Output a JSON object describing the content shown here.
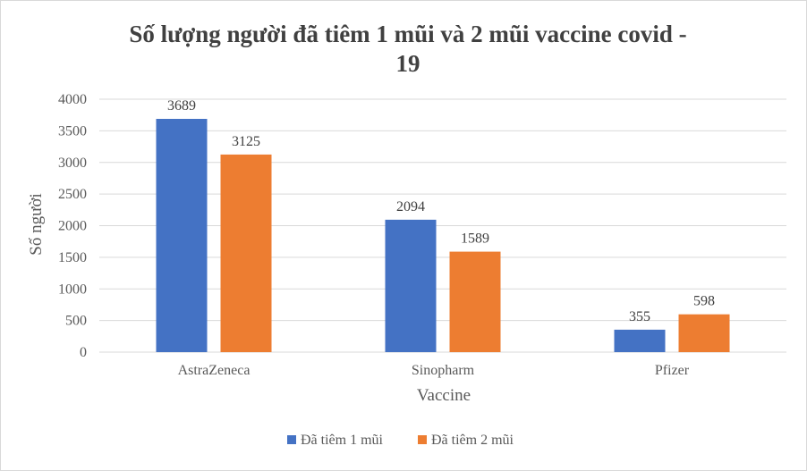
{
  "chart_data": {
    "type": "bar",
    "title_line1": "Số lượng người đã tiêm 1 mũi  và 2 mũi vaccine covid -",
    "title_line2": "19",
    "xlabel": "Vaccine",
    "ylabel": "Số người",
    "categories": [
      "AstraZeneca",
      "Sinopharm",
      "Pfizer"
    ],
    "series": [
      {
        "name": "Đã tiêm 1 mũi",
        "color": "#4472C4",
        "values": [
          3689,
          2094,
          355
        ]
      },
      {
        "name": "Đã tiêm 2 mũi",
        "color": "#ED7D31",
        "values": [
          3125,
          1589,
          598
        ]
      }
    ],
    "ylim": [
      0,
      4000
    ],
    "yticks": [
      0,
      500,
      1000,
      1500,
      2000,
      2500,
      3000,
      3500,
      4000
    ],
    "grid": true,
    "legend_position": "bottom",
    "data_labels": true
  }
}
